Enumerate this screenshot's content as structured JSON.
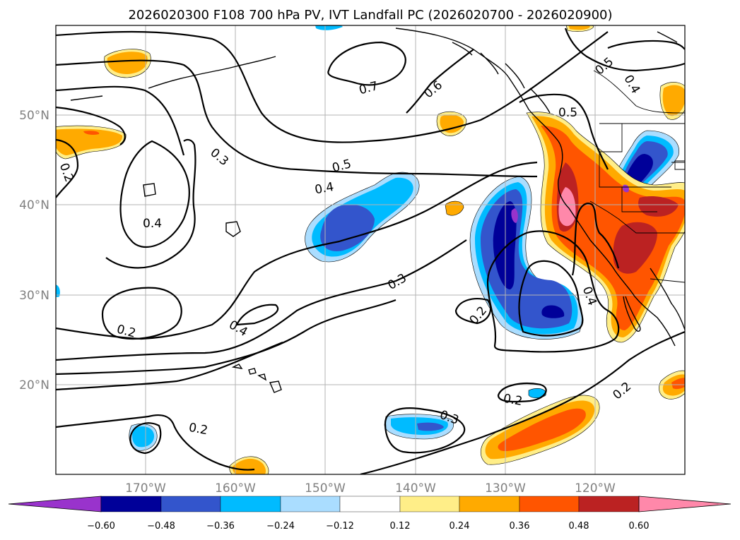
{
  "title": "2026020300 F108 700 hPa PV, IVT Landfall PC (2026020700 - 2026020900)",
  "map": {
    "lat_labels": [
      "50°N",
      "40°N",
      "30°N",
      "20°N"
    ],
    "lon_labels": [
      "170°W",
      "160°W",
      "150°W",
      "140°W",
      "130°W",
      "120°W"
    ]
  },
  "contour_labels": [
    "0.2",
    "0.3",
    "0.4",
    "0.5",
    "0.6",
    "0.7",
    "0.4",
    "0.3",
    "0.2",
    "0.4",
    "0.2",
    "0.3",
    "0.2",
    "0.2",
    "0.4",
    "0.5",
    "0.5",
    "0.4",
    "0.2"
  ],
  "colorbar": {
    "colors": [
      "#9933cc",
      "#000099",
      "#3355cc",
      "#00bbff",
      "#aaddff",
      "#ffffff",
      "#ffee88",
      "#ffaa00",
      "#ff5500",
      "#bb2222",
      "#ff88aa"
    ],
    "tick_labels": [
      "−0.60",
      "−0.48",
      "−0.36",
      "−0.24",
      "−0.12",
      "0.12",
      "0.24",
      "0.36",
      "0.48",
      "0.60"
    ]
  }
}
